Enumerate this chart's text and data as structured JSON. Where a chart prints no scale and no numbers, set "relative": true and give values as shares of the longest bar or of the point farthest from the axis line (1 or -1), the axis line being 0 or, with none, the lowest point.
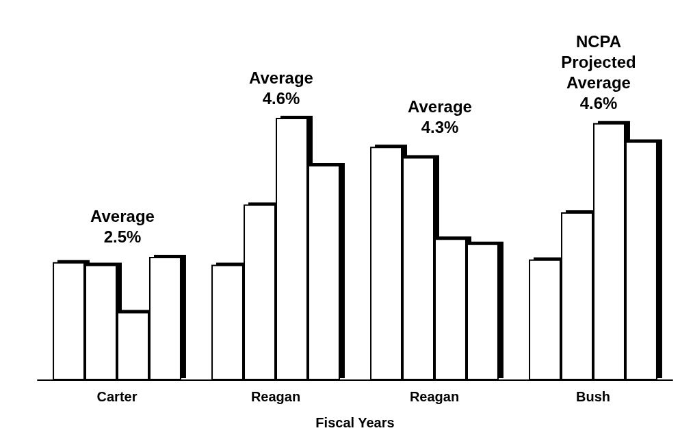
{
  "chart_data": {
    "type": "bar",
    "relative": true,
    "xlabel": "Fiscal Years",
    "categories": [
      "Carter",
      "Reagan",
      "Reagan",
      "Bush"
    ],
    "series": [
      {
        "color": "#ffffff",
        "values": [
          0.45,
          0.44,
          0.89,
          0.46
        ]
      },
      {
        "color": "#ffffff",
        "values": [
          0.44,
          0.67,
          0.85,
          0.64
        ]
      },
      {
        "color": "#ffffff",
        "values": [
          0.26,
          1,
          0.54,
          0.98
        ]
      },
      {
        "color": "#ffffff",
        "values": [
          0.47,
          0.82,
          0.52,
          0.91
        ]
      }
    ],
    "annotations": [
      "Average\n2.5%",
      "Average\n4.6%",
      "Average\n4.3%",
      "NCPA\nProjected\nAverage\n4.6%"
    ],
    "stacked": false
  }
}
